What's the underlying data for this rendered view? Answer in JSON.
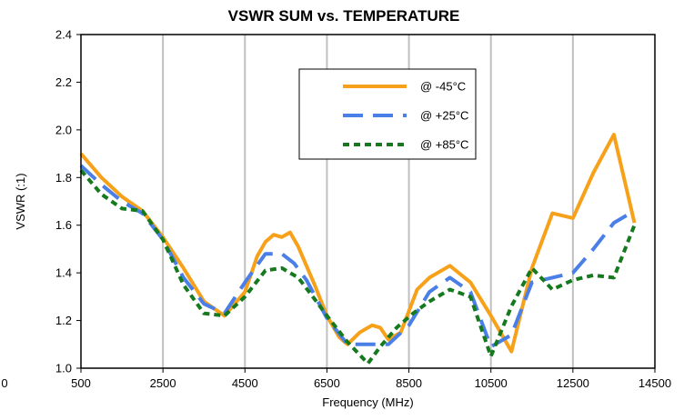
{
  "chart_data": {
    "type": "line",
    "title": "VSWR SUM vs. TEMPERATURE",
    "xlabel": "Frequency (MHz)",
    "ylabel": "VSWR (:1)",
    "xlim": [
      500,
      14500
    ],
    "ylim": [
      1.0,
      2.4
    ],
    "x_ticks": [
      "500",
      "2500",
      "4500",
      "6500",
      "8500",
      "10500",
      "12500",
      "14500"
    ],
    "y_ticks": [
      "1.0",
      "1.2",
      "1.4",
      "1.6",
      "1.8",
      "2.0",
      "2.2",
      "2.4"
    ],
    "stray_tick": "0",
    "grid": "vertical",
    "legend_position": "top-right",
    "series": [
      {
        "name": "@ -45°C",
        "color": "#F7A11A",
        "dash": "solid",
        "points": [
          [
            500,
            1.9
          ],
          [
            1000,
            1.8
          ],
          [
            1500,
            1.72
          ],
          [
            2000,
            1.66
          ],
          [
            2500,
            1.55
          ],
          [
            3000,
            1.42
          ],
          [
            3500,
            1.28
          ],
          [
            4000,
            1.22
          ],
          [
            4500,
            1.32
          ],
          [
            4800,
            1.47
          ],
          [
            5000,
            1.53
          ],
          [
            5200,
            1.56
          ],
          [
            5400,
            1.55
          ],
          [
            5600,
            1.57
          ],
          [
            5800,
            1.51
          ],
          [
            6200,
            1.35
          ],
          [
            6500,
            1.22
          ],
          [
            6800,
            1.13
          ],
          [
            7000,
            1.1
          ],
          [
            7300,
            1.15
          ],
          [
            7600,
            1.18
          ],
          [
            7800,
            1.17
          ],
          [
            8000,
            1.12
          ],
          [
            8300,
            1.15
          ],
          [
            8700,
            1.33
          ],
          [
            9000,
            1.38
          ],
          [
            9500,
            1.43
          ],
          [
            10000,
            1.36
          ],
          [
            10500,
            1.22
          ],
          [
            11000,
            1.07
          ],
          [
            11500,
            1.42
          ],
          [
            12000,
            1.65
          ],
          [
            12500,
            1.63
          ],
          [
            13000,
            1.82
          ],
          [
            13500,
            1.98
          ],
          [
            14000,
            1.61
          ]
        ]
      },
      {
        "name": "@ +25°C",
        "color": "#4A7FE8",
        "dash": "long-dash",
        "points": [
          [
            500,
            1.85
          ],
          [
            1000,
            1.77
          ],
          [
            1500,
            1.7
          ],
          [
            2000,
            1.65
          ],
          [
            2500,
            1.54
          ],
          [
            3000,
            1.38
          ],
          [
            3500,
            1.27
          ],
          [
            4000,
            1.23
          ],
          [
            4500,
            1.36
          ],
          [
            5000,
            1.48
          ],
          [
            5400,
            1.48
          ],
          [
            5700,
            1.44
          ],
          [
            6000,
            1.37
          ],
          [
            6500,
            1.21
          ],
          [
            7000,
            1.1
          ],
          [
            7500,
            1.1
          ],
          [
            8000,
            1.1
          ],
          [
            8500,
            1.18
          ],
          [
            9000,
            1.32
          ],
          [
            9500,
            1.38
          ],
          [
            10000,
            1.32
          ],
          [
            10500,
            1.09
          ],
          [
            11000,
            1.14
          ],
          [
            11500,
            1.36
          ],
          [
            12000,
            1.38
          ],
          [
            12500,
            1.4
          ],
          [
            13000,
            1.5
          ],
          [
            13500,
            1.61
          ],
          [
            14000,
            1.66
          ]
        ]
      },
      {
        "name": "@ +85°C",
        "color": "#157A1E",
        "dash": "short-dash",
        "points": [
          [
            500,
            1.83
          ],
          [
            1000,
            1.73
          ],
          [
            1500,
            1.67
          ],
          [
            2000,
            1.66
          ],
          [
            2500,
            1.54
          ],
          [
            3000,
            1.35
          ],
          [
            3500,
            1.23
          ],
          [
            4000,
            1.22
          ],
          [
            4500,
            1.3
          ],
          [
            5000,
            1.41
          ],
          [
            5400,
            1.42
          ],
          [
            5800,
            1.38
          ],
          [
            6200,
            1.29
          ],
          [
            6500,
            1.22
          ],
          [
            7000,
            1.11
          ],
          [
            7500,
            1.02
          ],
          [
            7800,
            1.09
          ],
          [
            8200,
            1.17
          ],
          [
            8600,
            1.23
          ],
          [
            9000,
            1.28
          ],
          [
            9500,
            1.33
          ],
          [
            10000,
            1.3
          ],
          [
            10500,
            1.05
          ],
          [
            11000,
            1.26
          ],
          [
            11500,
            1.42
          ],
          [
            12000,
            1.33
          ],
          [
            12500,
            1.37
          ],
          [
            13000,
            1.39
          ],
          [
            13500,
            1.38
          ],
          [
            14000,
            1.6
          ]
        ]
      }
    ]
  }
}
